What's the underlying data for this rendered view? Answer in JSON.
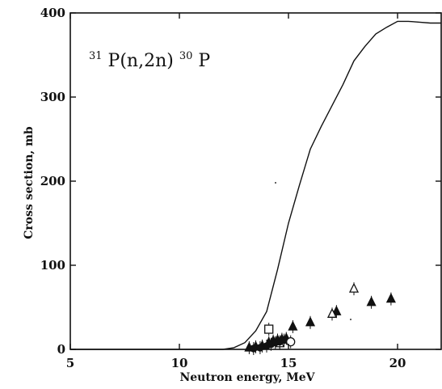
{
  "chart_data": {
    "type": "scatter",
    "annotation": {
      "pre_sup": "31",
      "main": "P(n,2n)",
      "mid_sup": "30",
      "post": "P"
    },
    "xlabel": "Neutron energy, MeV",
    "ylabel": "Cross section, mb",
    "xlim": [
      5,
      22
    ],
    "ylim": [
      0,
      400
    ],
    "x_ticks": [
      5,
      10,
      15,
      20
    ],
    "y_ticks": [
      0,
      100,
      200,
      300,
      400
    ],
    "grid": false,
    "series": [
      {
        "type": "line",
        "x": [
          5,
          12.0,
          12.5,
          13.0,
          13.5,
          14.0,
          14.5,
          15.0,
          15.5,
          16.0,
          16.5,
          17.0,
          17.5,
          18.0,
          18.5,
          19.0,
          19.5,
          20.0,
          20.5,
          21.0,
          21.5,
          22.0
        ],
        "y": [
          0,
          0,
          2,
          8,
          22,
          45,
          95,
          150,
          195,
          238,
          265,
          290,
          315,
          343,
          360,
          375,
          383,
          390,
          390,
          389,
          388,
          388
        ]
      },
      {
        "marker": "filled-triangle",
        "x": [
          13.2,
          13.5,
          13.8,
          14.1,
          14.3,
          14.5,
          14.7,
          14.9,
          15.2,
          16.0,
          17.2,
          18.8,
          19.7
        ],
        "y": [
          2,
          3,
          4,
          8,
          10,
          11,
          12,
          13,
          27,
          32,
          45,
          56,
          60
        ]
      },
      {
        "marker": "open-triangle",
        "x": [
          14.6,
          17.0,
          18.0
        ],
        "y": [
          7,
          42,
          72
        ]
      },
      {
        "marker": "filled-circle",
        "x": [
          13.4,
          13.7,
          14.0,
          14.2,
          14.4,
          14.6,
          14.8
        ],
        "y": [
          1,
          2,
          4,
          6,
          8,
          9,
          11
        ]
      },
      {
        "marker": "open-circle",
        "x": [
          15.1
        ],
        "y": [
          9
        ]
      },
      {
        "marker": "open-square",
        "x": [
          14.1
        ],
        "y": [
          24
        ]
      }
    ]
  }
}
